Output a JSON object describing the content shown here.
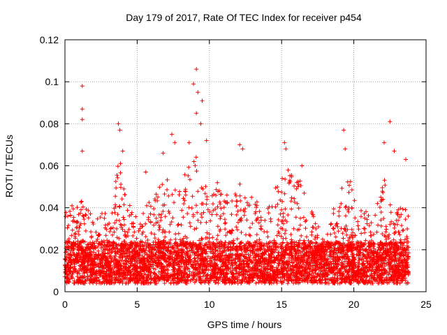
{
  "chart_data": {
    "type": "scatter",
    "title": "Day 179 of 2017, Rate Of TEC Index for receiver p454",
    "xlabel": "GPS time / hours",
    "ylabel": "ROTI / TECUs",
    "xlim": [
      0,
      25
    ],
    "ylim": [
      0,
      0.12
    ],
    "xticks": [
      0,
      5,
      10,
      15,
      20,
      25
    ],
    "yticks": [
      0,
      0.02,
      0.04,
      0.06,
      0.08,
      0.1,
      0.12
    ],
    "xtick_labels": [
      "0",
      "5",
      "10",
      "15",
      "20",
      "25"
    ],
    "ytick_labels": [
      "0",
      "0.02",
      "0.04",
      "0.06",
      "0.08",
      "0.1",
      "0.12"
    ],
    "grid": true,
    "marker": "+",
    "color": "#ff0000",
    "series": [
      {
        "name": "ROTI",
        "x_range_hours": [
          0,
          23.8
        ],
        "typical_range": [
          0.005,
          0.03
        ],
        "peaks": [
          {
            "x": 1.2,
            "y": 0.098
          },
          {
            "x": 1.2,
            "y": 0.087
          },
          {
            "x": 1.2,
            "y": 0.082
          },
          {
            "x": 1.2,
            "y": 0.067
          },
          {
            "x": 3.7,
            "y": 0.08
          },
          {
            "x": 3.8,
            "y": 0.077
          },
          {
            "x": 4.0,
            "y": 0.067
          },
          {
            "x": 5.6,
            "y": 0.057
          },
          {
            "x": 6.8,
            "y": 0.066
          },
          {
            "x": 7.4,
            "y": 0.075
          },
          {
            "x": 7.6,
            "y": 0.071
          },
          {
            "x": 8.6,
            "y": 0.071
          },
          {
            "x": 8.9,
            "y": 0.099
          },
          {
            "x": 9.1,
            "y": 0.106
          },
          {
            "x": 9.2,
            "y": 0.095
          },
          {
            "x": 9.1,
            "y": 0.085
          },
          {
            "x": 9.5,
            "y": 0.091
          },
          {
            "x": 9.4,
            "y": 0.08
          },
          {
            "x": 9.8,
            "y": 0.072
          },
          {
            "x": 12.1,
            "y": 0.07
          },
          {
            "x": 12.3,
            "y": 0.068
          },
          {
            "x": 15.2,
            "y": 0.071
          },
          {
            "x": 15.3,
            "y": 0.068
          },
          {
            "x": 16.4,
            "y": 0.06
          },
          {
            "x": 19.3,
            "y": 0.077
          },
          {
            "x": 19.4,
            "y": 0.068
          },
          {
            "x": 22.1,
            "y": 0.071
          },
          {
            "x": 22.5,
            "y": 0.081
          },
          {
            "x": 22.8,
            "y": 0.067
          },
          {
            "x": 23.6,
            "y": 0.063
          }
        ],
        "envelope": [
          {
            "x": 0.0,
            "y": 0.04
          },
          {
            "x": 1.0,
            "y": 0.045
          },
          {
            "x": 2.0,
            "y": 0.035
          },
          {
            "x": 3.0,
            "y": 0.04
          },
          {
            "x": 3.8,
            "y": 0.065
          },
          {
            "x": 5.0,
            "y": 0.035
          },
          {
            "x": 6.0,
            "y": 0.045
          },
          {
            "x": 7.0,
            "y": 0.055
          },
          {
            "x": 8.0,
            "y": 0.05
          },
          {
            "x": 9.0,
            "y": 0.07
          },
          {
            "x": 10.0,
            "y": 0.055
          },
          {
            "x": 11.0,
            "y": 0.05
          },
          {
            "x": 12.0,
            "y": 0.055
          },
          {
            "x": 13.0,
            "y": 0.045
          },
          {
            "x": 14.0,
            "y": 0.04
          },
          {
            "x": 15.2,
            "y": 0.06
          },
          {
            "x": 16.2,
            "y": 0.055
          },
          {
            "x": 17.0,
            "y": 0.04
          },
          {
            "x": 18.0,
            "y": 0.025
          },
          {
            "x": 19.4,
            "y": 0.06
          },
          {
            "x": 20.5,
            "y": 0.04
          },
          {
            "x": 21.5,
            "y": 0.04
          },
          {
            "x": 22.2,
            "y": 0.055
          },
          {
            "x": 23.0,
            "y": 0.04
          },
          {
            "x": 23.8,
            "y": 0.04
          }
        ]
      }
    ]
  }
}
